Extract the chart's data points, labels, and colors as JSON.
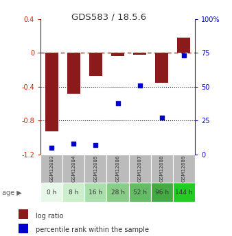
{
  "title": "GDS583 / 18.5.6",
  "samples": [
    "GSM12883",
    "GSM12884",
    "GSM12885",
    "GSM12886",
    "GSM12887",
    "GSM12888",
    "GSM12889"
  ],
  "ages": [
    "0 h",
    "8 h",
    "16 h",
    "28 h",
    "52 h",
    "96 h",
    "144 h"
  ],
  "log_ratio": [
    -0.93,
    -0.48,
    -0.27,
    -0.04,
    -0.02,
    -0.35,
    0.18
  ],
  "percentile": [
    5,
    8,
    7,
    38,
    51,
    27,
    73
  ],
  "ylim_left": [
    -1.2,
    0.4
  ],
  "ylim_right": [
    0,
    100
  ],
  "bar_color": "#8B1A1A",
  "scatter_color": "#0000CC",
  "dashed_line_color": "#AA2222",
  "dotted_line_color": "#000000",
  "left_tick_color": "#CC2200",
  "right_tick_color": "#0000CC",
  "title_color": "#333333",
  "age_row_colors": [
    "#E8F8E8",
    "#CCEECC",
    "#AADEAA",
    "#88CC88",
    "#66BB66",
    "#44AA44",
    "#22CC22"
  ],
  "gsm_row_color": "#BBBBBB",
  "legend_red_label": "log ratio",
  "legend_blue_label": "percentile rank within the sample",
  "right_ticks": [
    0,
    25,
    50,
    75,
    100
  ],
  "right_tick_labels": [
    "0",
    "25",
    "50",
    "75",
    "100%"
  ],
  "left_ticks": [
    -1.2,
    -0.8,
    -0.4,
    0.0,
    0.4
  ],
  "left_tick_labels": [
    "-1.2",
    "-0.8",
    "-0.4",
    "0",
    "0.4"
  ]
}
